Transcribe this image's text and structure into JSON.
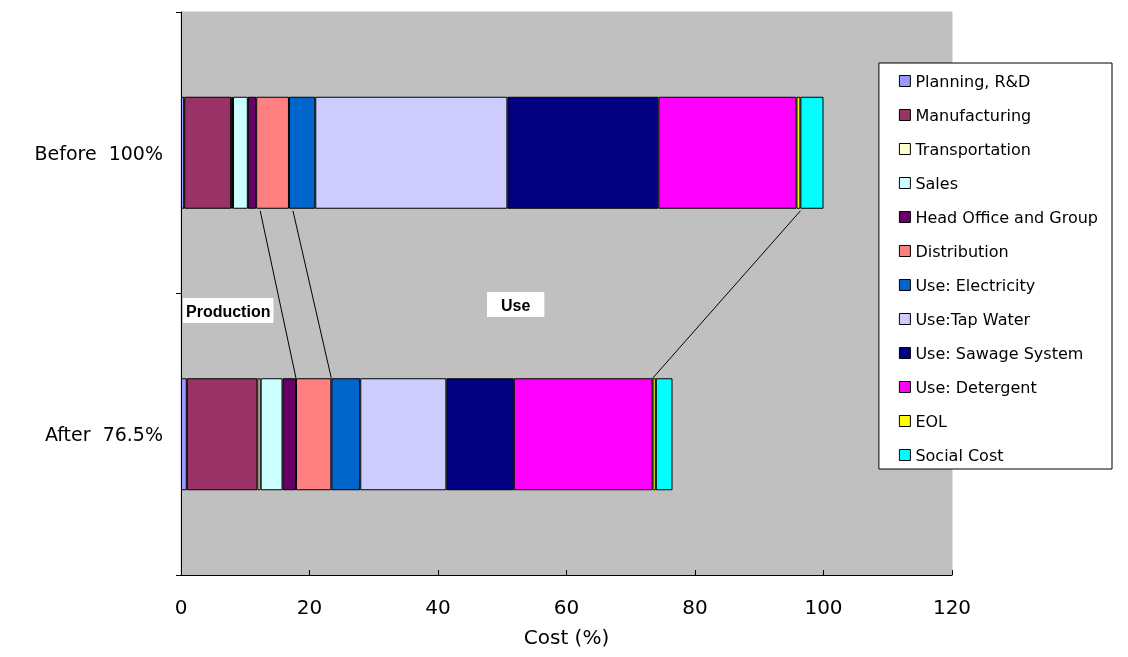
{
  "chart_data": {
    "type": "bar",
    "orientation": "horizontal",
    "stacked": true,
    "categories": [
      "Before  100%",
      "After  76.5%"
    ],
    "xlabel": "Cost (%)",
    "xlim": [
      0,
      120
    ],
    "xticks": [
      0,
      20,
      40,
      60,
      80,
      100,
      120
    ],
    "grid": false,
    "legend": "right",
    "annotations": [
      "Production",
      "Use"
    ],
    "series": [
      {
        "name": "Planning, R&D",
        "color": "#9999ff",
        "values": [
          0.5,
          0.9
        ]
      },
      {
        "name": "Manufacturing",
        "color": "#993366",
        "values": [
          7.3,
          11.0
        ]
      },
      {
        "name": "Transportation",
        "color": "#ffffcc",
        "values": [
          0.3,
          0.5
        ]
      },
      {
        "name": "Sales",
        "color": "#ccffff",
        "values": [
          2.3,
          3.4
        ]
      },
      {
        "name": "Head Office and Group",
        "color": "#660066",
        "values": [
          1.3,
          2.1
        ]
      },
      {
        "name": "Distribution",
        "color": "#ff8080",
        "values": [
          5.1,
          5.5
        ]
      },
      {
        "name": "Use: Electricity",
        "color": "#0066cc",
        "values": [
          4.1,
          4.5
        ]
      },
      {
        "name": "Use:Tap Water",
        "color": "#ccccff",
        "values": [
          29.9,
          13.4
        ]
      },
      {
        "name": "Use: Sawage System",
        "color": "#000080",
        "values": [
          23.5,
          10.5
        ]
      },
      {
        "name": "Use: Detergent",
        "color": "#ff00ff",
        "values": [
          21.5,
          21.6
        ]
      },
      {
        "name": "EOL",
        "color": "#ffff00",
        "values": [
          0.6,
          0.5
        ]
      },
      {
        "name": "Social Cost",
        "color": "#00ffff",
        "values": [
          3.6,
          2.6
        ]
      }
    ]
  }
}
